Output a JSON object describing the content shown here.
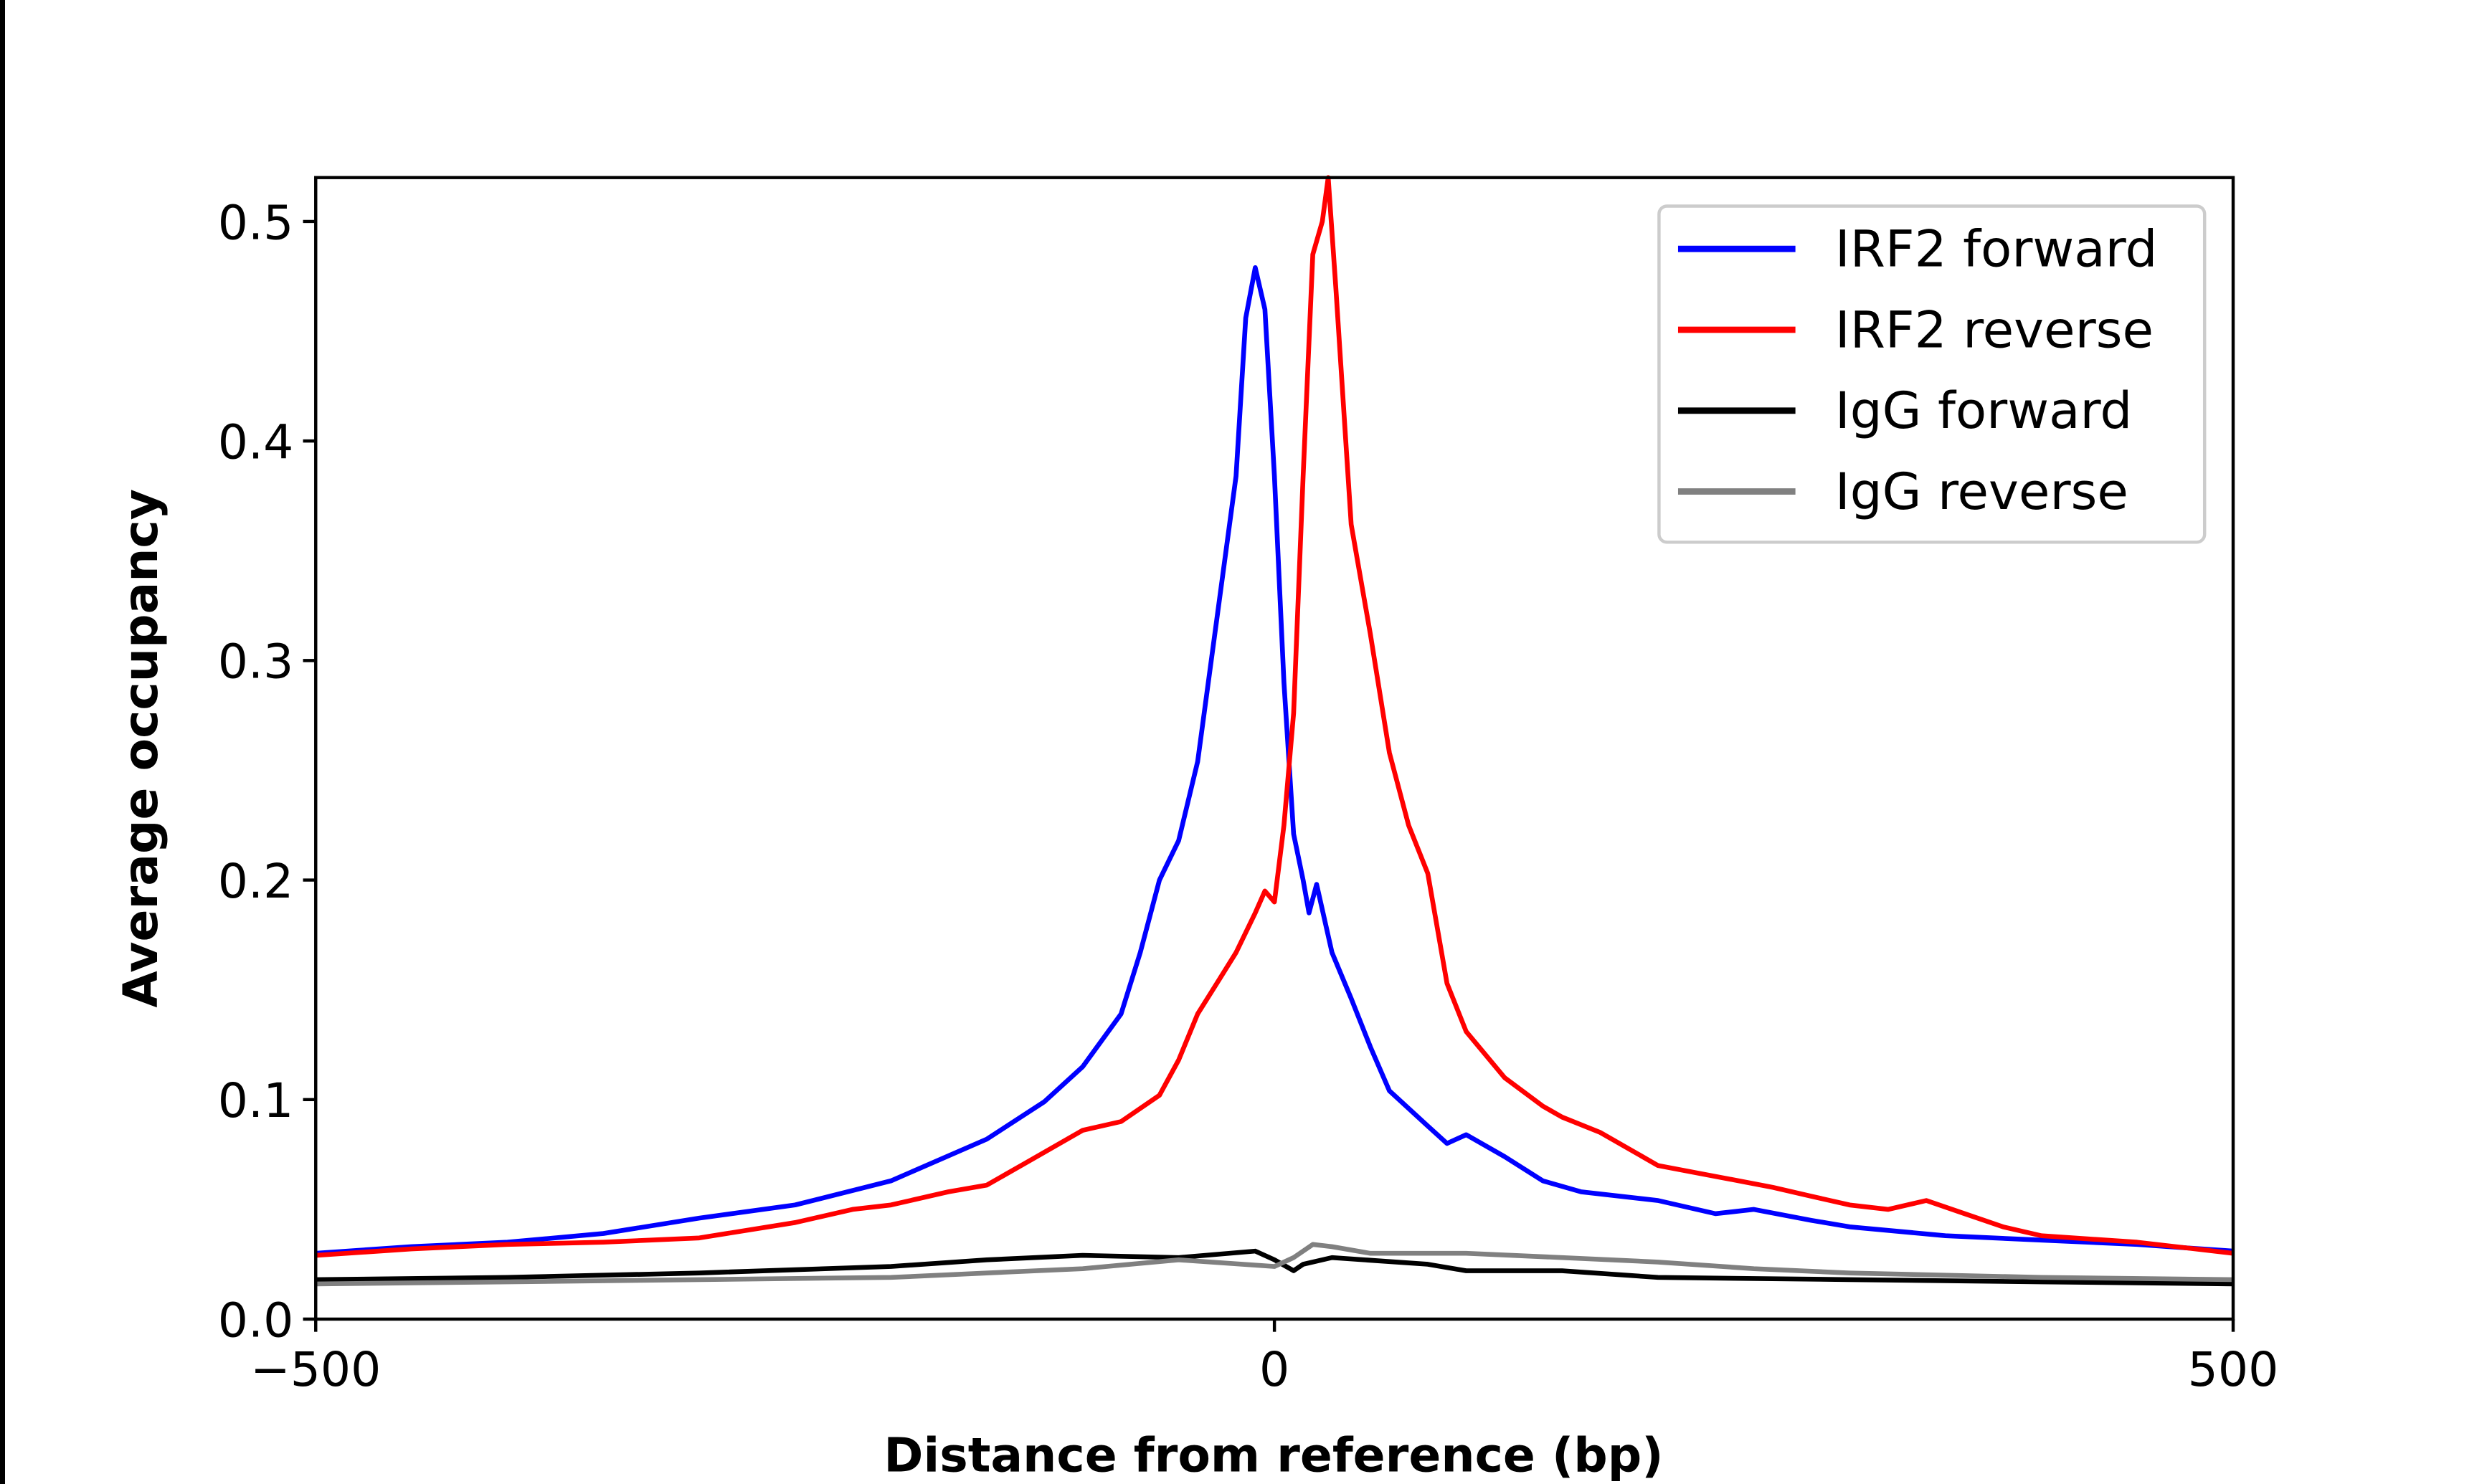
{
  "chart_data": {
    "type": "line",
    "title": "",
    "xlabel": "Distance from reference (bp)",
    "ylabel": "Average occupancy",
    "xlim": [
      -500,
      500
    ],
    "ylim": [
      0,
      0.52
    ],
    "xticks": [
      -500,
      0,
      500
    ],
    "xtick_labels": [
      "−500",
      "0",
      "500"
    ],
    "yticks": [
      0.0,
      0.1,
      0.2,
      0.3,
      0.4,
      0.5
    ],
    "ytick_labels": [
      "0.0",
      "0.1",
      "0.2",
      "0.3",
      "0.4",
      "0.5"
    ],
    "grid": false,
    "legend_position": "top-right",
    "series": [
      {
        "name": "IRF2 forward",
        "color": "#0000ff",
        "x": [
          -500,
          -450,
          -400,
          -350,
          -300,
          -250,
          -200,
          -150,
          -120,
          -100,
          -80,
          -70,
          -60,
          -50,
          -40,
          -30,
          -20,
          -15,
          -10,
          -5,
          0,
          5,
          10,
          15,
          18,
          22,
          30,
          40,
          50,
          60,
          80,
          90,
          100,
          120,
          140,
          160,
          200,
          230,
          250,
          280,
          300,
          350,
          400,
          450,
          500
        ],
        "y": [
          0.03,
          0.033,
          0.035,
          0.039,
          0.046,
          0.052,
          0.063,
          0.082,
          0.099,
          0.115,
          0.139,
          0.167,
          0.2,
          0.218,
          0.254,
          0.319,
          0.384,
          0.456,
          0.479,
          0.46,
          0.384,
          0.29,
          0.221,
          0.2,
          0.185,
          0.198,
          0.167,
          0.146,
          0.124,
          0.104,
          0.088,
          0.08,
          0.084,
          0.074,
          0.063,
          0.058,
          0.054,
          0.048,
          0.05,
          0.045,
          0.042,
          0.038,
          0.036,
          0.034,
          0.031
        ]
      },
      {
        "name": "IRF2 reverse",
        "color": "#ff0000",
        "x": [
          -500,
          -450,
          -400,
          -350,
          -300,
          -250,
          -220,
          -200,
          -170,
          -150,
          -130,
          -100,
          -80,
          -60,
          -50,
          -40,
          -30,
          -20,
          -10,
          -5,
          0,
          5,
          10,
          15,
          20,
          25,
          28,
          32,
          40,
          50,
          60,
          70,
          80,
          90,
          100,
          120,
          140,
          150,
          170,
          200,
          230,
          260,
          280,
          300,
          320,
          340,
          360,
          380,
          400,
          450,
          500
        ],
        "y": [
          0.029,
          0.032,
          0.034,
          0.035,
          0.037,
          0.044,
          0.05,
          0.052,
          0.058,
          0.061,
          0.071,
          0.086,
          0.09,
          0.102,
          0.118,
          0.139,
          0.153,
          0.167,
          0.185,
          0.195,
          0.19,
          0.225,
          0.276,
          0.384,
          0.485,
          0.5,
          0.52,
          0.47,
          0.362,
          0.312,
          0.258,
          0.225,
          0.203,
          0.153,
          0.131,
          0.11,
          0.097,
          0.092,
          0.085,
          0.07,
          0.065,
          0.06,
          0.056,
          0.052,
          0.05,
          0.054,
          0.048,
          0.042,
          0.038,
          0.035,
          0.03
        ]
      },
      {
        "name": "IgG forward",
        "color": "#000000",
        "x": [
          -500,
          -400,
          -300,
          -200,
          -150,
          -100,
          -50,
          -10,
          0,
          10,
          15,
          30,
          80,
          100,
          150,
          200,
          300,
          400,
          500
        ],
        "y": [
          0.018,
          0.019,
          0.021,
          0.024,
          0.027,
          0.029,
          0.028,
          0.031,
          0.027,
          0.022,
          0.025,
          0.028,
          0.025,
          0.022,
          0.022,
          0.019,
          0.018,
          0.017,
          0.016
        ]
      },
      {
        "name": "IgG reverse",
        "color": "#808080",
        "x": [
          -500,
          -400,
          -300,
          -200,
          -150,
          -100,
          -50,
          0,
          10,
          20,
          30,
          50,
          100,
          150,
          200,
          250,
          300,
          400,
          500
        ],
        "y": [
          0.016,
          0.017,
          0.018,
          0.019,
          0.021,
          0.023,
          0.027,
          0.024,
          0.028,
          0.034,
          0.033,
          0.03,
          0.03,
          0.028,
          0.026,
          0.023,
          0.021,
          0.019,
          0.018
        ]
      }
    ]
  }
}
